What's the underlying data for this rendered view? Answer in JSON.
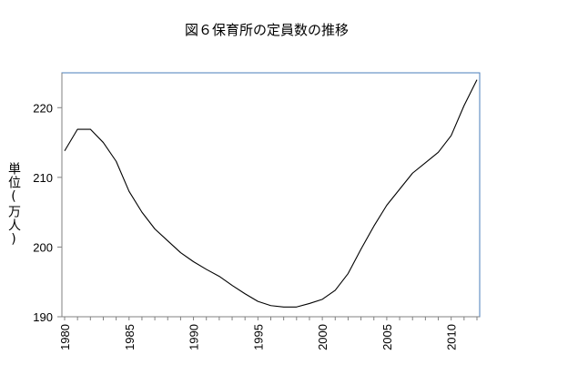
{
  "chart_data": {
    "type": "line",
    "title": "図６保育所の定員数の推移",
    "xlabel": "",
    "ylabel": "単位(万人)",
    "xlim": [
      1980,
      2012
    ],
    "ylim": [
      190,
      225
    ],
    "xticks": [
      1980,
      1985,
      1990,
      1995,
      2000,
      2005,
      2010
    ],
    "yticks": [
      190,
      200,
      210,
      220
    ],
    "grid": false,
    "series": [
      {
        "color": "#000000",
        "x": [
          1980,
          1981,
          1982,
          1983,
          1984,
          1985,
          1986,
          1987,
          1988,
          1989,
          1990,
          1991,
          1992,
          1993,
          1994,
          1995,
          1996,
          1997,
          1998,
          1999,
          2000,
          2001,
          2002,
          2003,
          2004,
          2005,
          2006,
          2007,
          2008,
          2009,
          2010,
          2011,
          2012
        ],
        "values": [
          213.8,
          216.9,
          216.9,
          215.0,
          212.3,
          208.0,
          205.0,
          202.6,
          200.9,
          199.2,
          197.9,
          196.8,
          195.8,
          194.5,
          193.3,
          192.2,
          191.6,
          191.4,
          191.4,
          191.9,
          192.5,
          193.8,
          196.2,
          199.7,
          203.0,
          206.0,
          208.3,
          210.6,
          212.1,
          213.6,
          216.0,
          220.3,
          224.0
        ]
      }
    ],
    "plot_border_color": "#4a7ebb",
    "axis_color": "#808080"
  }
}
